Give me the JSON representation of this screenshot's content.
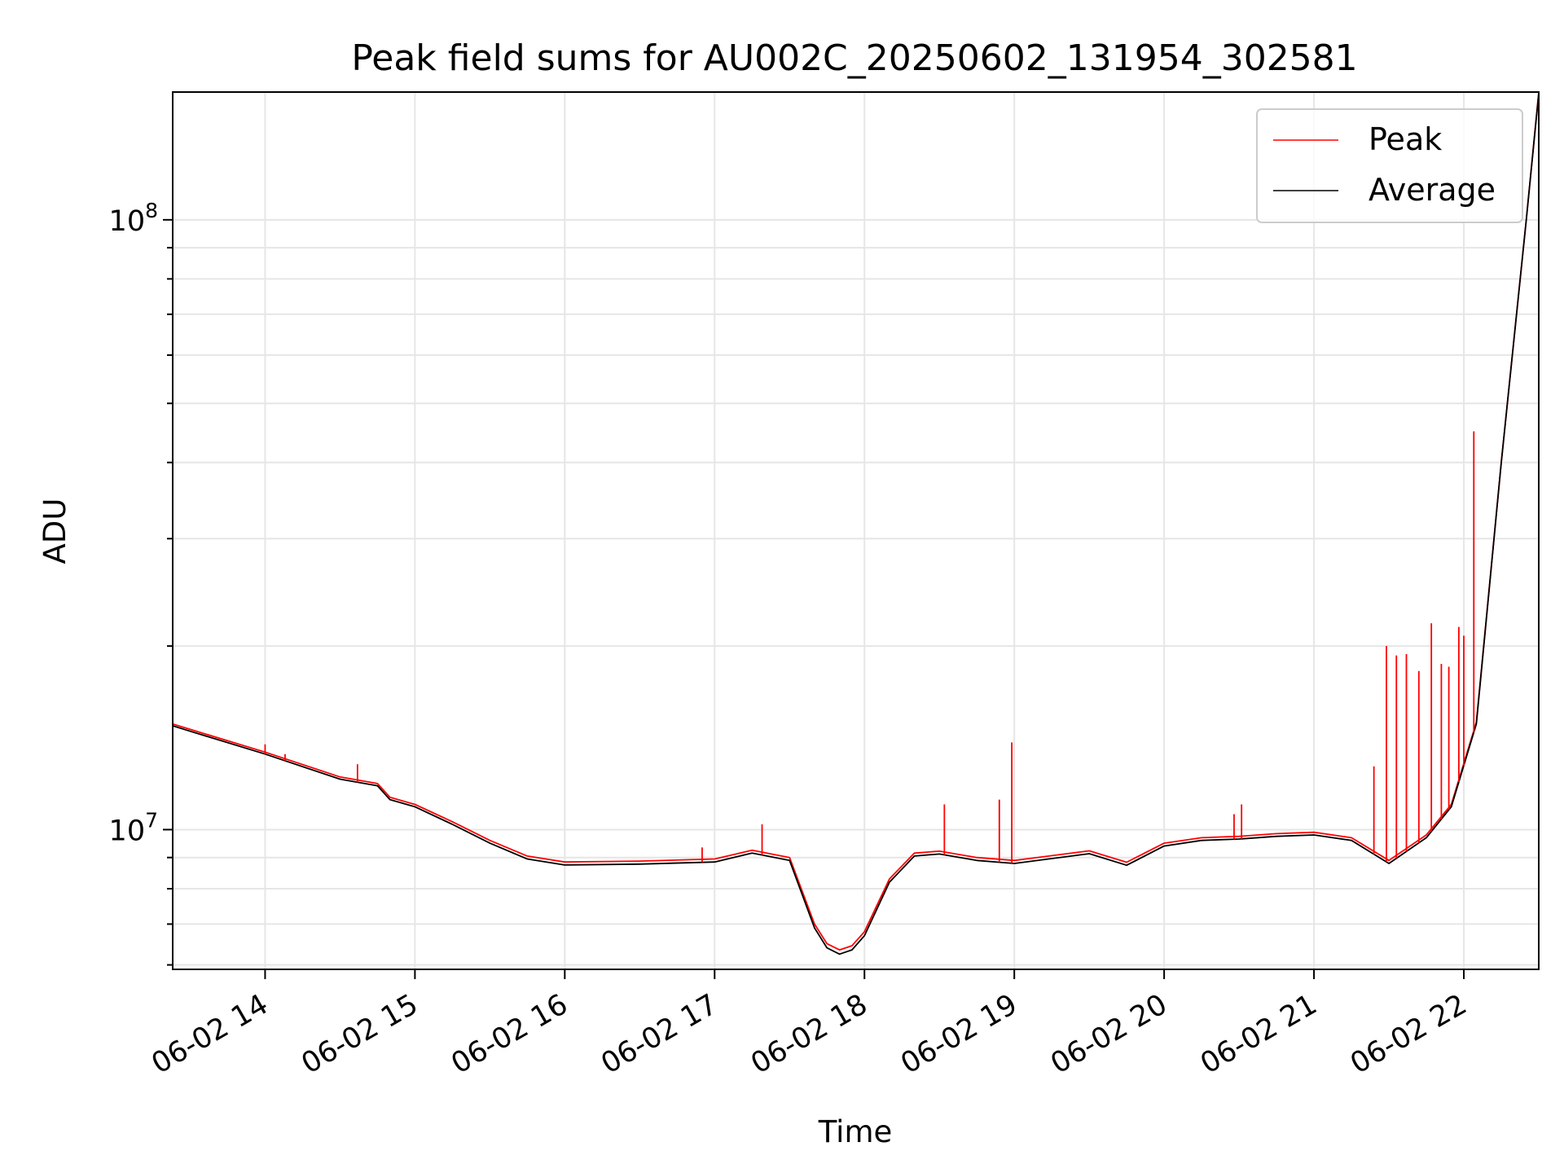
{
  "chart_data": {
    "type": "line",
    "title": "Peak field sums for AU002C_20250602_131954_302581",
    "xlabel": "Time",
    "ylabel": "ADU",
    "y_scale": "log",
    "ylim": [
      5900000,
      162000000
    ],
    "xlim": [
      "06-02 13:23",
      "06-02 22:30"
    ],
    "x_tick_labels": [
      "06-02 14",
      "06-02 15",
      "06-02 16",
      "06-02 17",
      "06-02 18",
      "06-02 19",
      "06-02 20",
      "06-02 21",
      "06-02 22"
    ],
    "y_tick_labels": [
      "10",
      "10"
    ],
    "y_tick_exponents": [
      "7",
      "8"
    ],
    "grid": true,
    "legend_position": "top-right",
    "series": [
      {
        "name": "Peak",
        "color": "#ff0000",
        "x": [
          "06-02 13:23",
          "06-02 13:30",
          "06-02 14:00",
          "06-02 14:30",
          "06-02 14:45",
          "06-02 14:50",
          "06-02 15:00",
          "06-02 15:15",
          "06-02 15:30",
          "06-02 15:45",
          "06-02 16:00",
          "06-02 16:30",
          "06-02 17:00",
          "06-02 17:15",
          "06-02 17:30",
          "06-02 17:40",
          "06-02 17:45",
          "06-02 17:50",
          "06-02 17:55",
          "06-02 18:00",
          "06-02 18:10",
          "06-02 18:20",
          "06-02 18:30",
          "06-02 18:45",
          "06-02 19:00",
          "06-02 19:30",
          "06-02 19:45",
          "06-02 20:00",
          "06-02 20:15",
          "06-02 20:30",
          "06-02 20:45",
          "06-02 21:00",
          "06-02 21:15",
          "06-02 21:30",
          "06-02 21:45",
          "06-02 21:55",
          "06-02 22:05",
          "06-02 22:15",
          "06-02 22:25",
          "06-02 22:30"
        ],
        "y": [
          14900000,
          14600000,
          13400000,
          12200000,
          11900000,
          11300000,
          11000000,
          10300000,
          9600000,
          9050000,
          8850000,
          8880000,
          8950000,
          9250000,
          9000000,
          7000000,
          6500000,
          6350000,
          6450000,
          6800000,
          8300000,
          9150000,
          9220000,
          9000000,
          8900000,
          9230000,
          8840000,
          9500000,
          9700000,
          9750000,
          9850000,
          9900000,
          9700000,
          8900000,
          9800000,
          11000000,
          15000000,
          40000000,
          100000000,
          162000000
        ]
      },
      {
        "name": "Average",
        "color": "#000000",
        "x": [
          "06-02 13:23",
          "06-02 13:30",
          "06-02 14:00",
          "06-02 14:30",
          "06-02 14:45",
          "06-02 14:50",
          "06-02 15:00",
          "06-02 15:15",
          "06-02 15:30",
          "06-02 15:45",
          "06-02 16:00",
          "06-02 16:30",
          "06-02 17:00",
          "06-02 17:15",
          "06-02 17:30",
          "06-02 17:40",
          "06-02 17:45",
          "06-02 17:50",
          "06-02 17:55",
          "06-02 18:00",
          "06-02 18:10",
          "06-02 18:20",
          "06-02 18:30",
          "06-02 18:45",
          "06-02 19:00",
          "06-02 19:30",
          "06-02 19:45",
          "06-02 20:00",
          "06-02 20:15",
          "06-02 20:30",
          "06-02 20:45",
          "06-02 21:00",
          "06-02 21:15",
          "06-02 21:30",
          "06-02 21:45",
          "06-02 21:55",
          "06-02 22:05",
          "06-02 22:15",
          "06-02 22:25",
          "06-02 22:30"
        ],
        "y": [
          14800000,
          14500000,
          13300000,
          12100000,
          11800000,
          11200000,
          10900000,
          10200000,
          9500000,
          8950000,
          8750000,
          8780000,
          8850000,
          9150000,
          8900000,
          6900000,
          6400000,
          6250000,
          6350000,
          6700000,
          8200000,
          9050000,
          9120000,
          8900000,
          8800000,
          9130000,
          8740000,
          9400000,
          9600000,
          9650000,
          9750000,
          9800000,
          9600000,
          8800000,
          9700000,
          10900000,
          14900000,
          40000000,
          100000000,
          161000000
        ]
      }
    ],
    "peak_spikes": [
      {
        "x": "06-02 14:00",
        "y": 13800000
      },
      {
        "x": "06-02 14:08",
        "y": 13300000
      },
      {
        "x": "06-02 14:37",
        "y": 12800000
      },
      {
        "x": "06-02 16:55",
        "y": 9350000
      },
      {
        "x": "06-02 17:19",
        "y": 10200000
      },
      {
        "x": "06-02 18:32",
        "y": 11000000
      },
      {
        "x": "06-02 18:54",
        "y": 11200000
      },
      {
        "x": "06-02 18:59",
        "y": 13900000
      },
      {
        "x": "06-02 20:28",
        "y": 10600000
      },
      {
        "x": "06-02 20:31",
        "y": 11000000
      },
      {
        "x": "06-02 21:24",
        "y": 12700000
      },
      {
        "x": "06-02 21:29",
        "y": 20000000
      },
      {
        "x": "06-02 21:33",
        "y": 19300000
      },
      {
        "x": "06-02 21:37",
        "y": 19400000
      },
      {
        "x": "06-02 21:42",
        "y": 18200000
      },
      {
        "x": "06-02 21:47",
        "y": 21800000
      },
      {
        "x": "06-02 21:51",
        "y": 18700000
      },
      {
        "x": "06-02 21:54",
        "y": 18500000
      },
      {
        "x": "06-02 21:58",
        "y": 21500000
      },
      {
        "x": "06-02 22:00",
        "y": 20800000
      },
      {
        "x": "06-02 22:04",
        "y": 45000000
      }
    ]
  }
}
